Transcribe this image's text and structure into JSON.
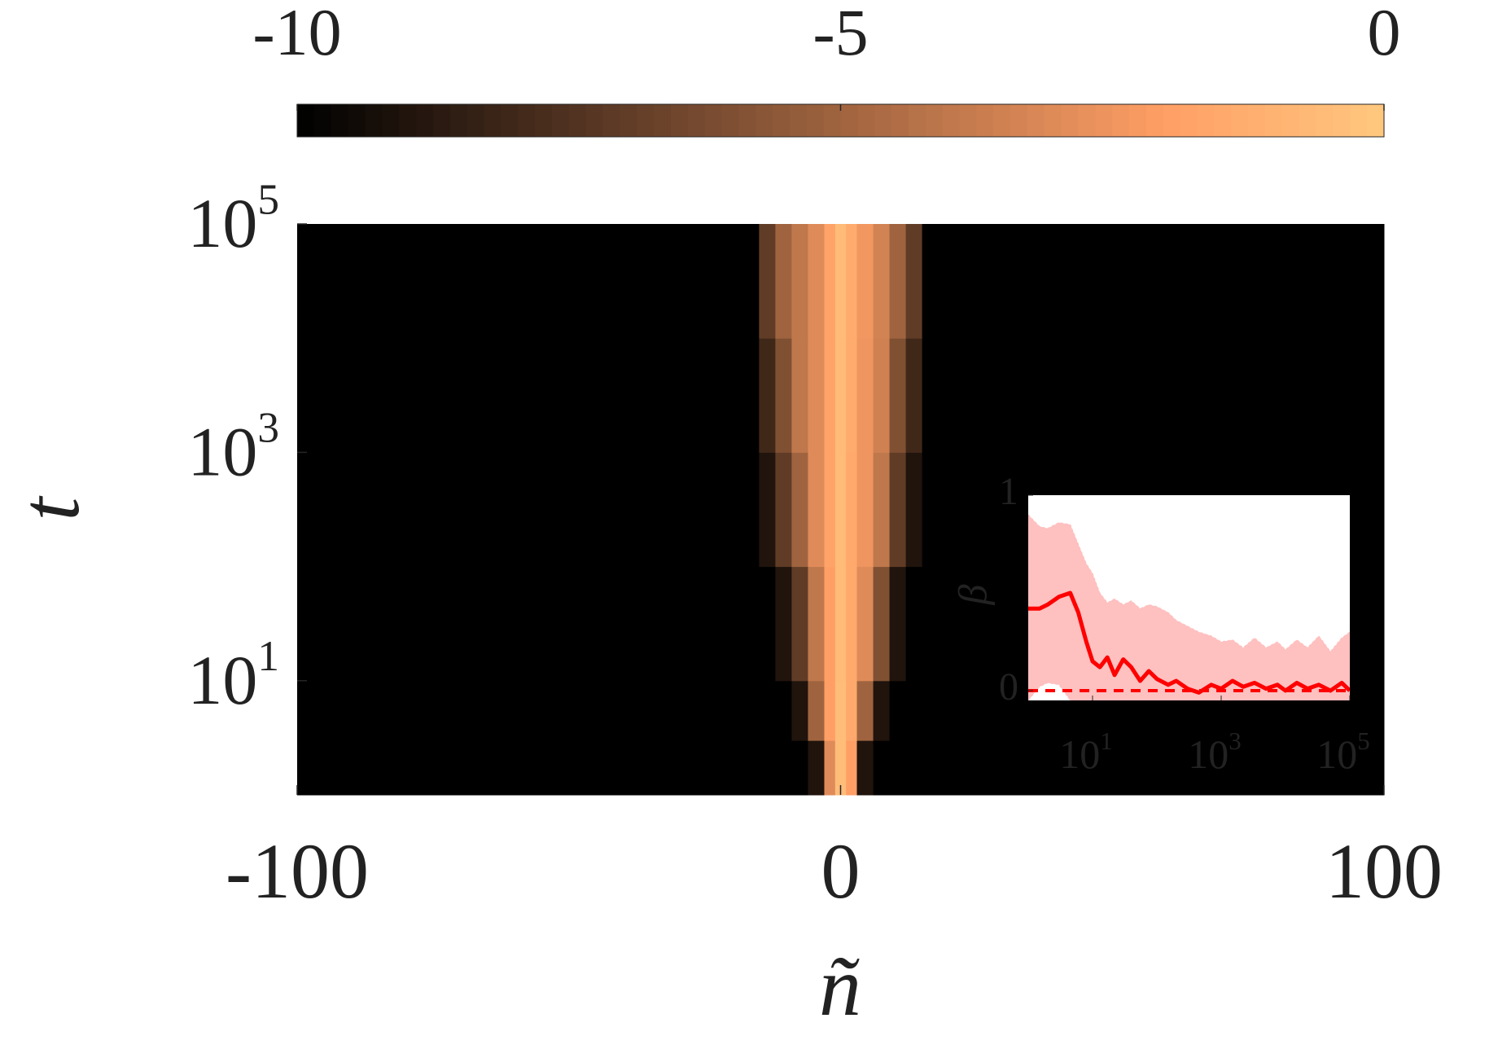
{
  "chart_data": [
    {
      "type": "heatmap",
      "xlabel": "ñ",
      "ylabel": "t",
      "xlim": [
        -100,
        100
      ],
      "xticks": [
        -100,
        0,
        100
      ],
      "ylim": [
        1,
        100000
      ],
      "ylog": true,
      "yticks": [
        {
          "value": 10,
          "label": "10",
          "exponent": "1"
        },
        {
          "value": 1000,
          "label": "10",
          "exponent": "3"
        },
        {
          "value": 100000,
          "label": "10",
          "exponent": "5"
        }
      ],
      "xbins": [
        -100,
        -15,
        -12,
        -9,
        -6,
        -3,
        -1,
        1,
        3,
        6,
        9,
        12,
        15,
        100
      ],
      "ybins": [
        1,
        3,
        10,
        100,
        1000,
        10000,
        100000
      ],
      "z": [
        [
          -10,
          -10,
          -10,
          -10,
          -9,
          -3,
          -0.5,
          -2,
          -9,
          -10,
          -10,
          -10,
          -10
        ],
        [
          -10,
          -10,
          -10,
          -9,
          -5,
          -2,
          -0.5,
          -1.5,
          -5,
          -9,
          -10,
          -10,
          -10
        ],
        [
          -10,
          -10,
          -9,
          -7,
          -4,
          -2,
          -0.6,
          -1.5,
          -3,
          -6,
          -9,
          -10,
          -10
        ],
        [
          -10,
          -9,
          -7,
          -5,
          -3,
          -1.8,
          -0.6,
          -1.5,
          -2.5,
          -4,
          -7,
          -9,
          -10
        ],
        [
          -10,
          -8,
          -6,
          -4,
          -3,
          -1.8,
          -0.6,
          -1.4,
          -2.5,
          -3.5,
          -6,
          -8,
          -10
        ],
        [
          -10,
          -7,
          -5,
          -4,
          -3,
          -1.8,
          -0.6,
          -1.4,
          -2.4,
          -3.4,
          -5,
          -7,
          -10
        ]
      ],
      "colormap": "copper",
      "clim": [
        -10,
        0
      ],
      "colorbar_ticks": [
        -10,
        -5,
        0
      ],
      "colorbar_location": "top"
    },
    {
      "type": "line",
      "ylabel": "β",
      "x": [
        1,
        1.5,
        2,
        3,
        4.5,
        6,
        8,
        10,
        13,
        17,
        22,
        30,
        40,
        55,
        75,
        100,
        150,
        200,
        300,
        450,
        700,
        1000,
        1500,
        2200,
        3300,
        5000,
        7500,
        10000,
        15000,
        22000,
        33000,
        50000,
        75000,
        100000
      ],
      "xlog": true,
      "xlim": [
        1,
        100000
      ],
      "xticks": [
        {
          "value": 10,
          "label": "10",
          "exponent": "1"
        },
        {
          "value": 1000,
          "label": "10",
          "exponent": "3"
        },
        {
          "value": 100000,
          "label": "10",
          "exponent": "5"
        }
      ],
      "ylim": [
        -0.05,
        1
      ],
      "yticks": [
        0,
        1
      ],
      "series": [
        {
          "color": "#ff0000",
          "values": [
            0.42,
            0.42,
            0.44,
            0.48,
            0.5,
            0.4,
            0.25,
            0.15,
            0.12,
            0.17,
            0.08,
            0.16,
            0.12,
            0.05,
            0.1,
            0.06,
            0.03,
            0.05,
            0.01,
            -0.01,
            0.03,
            0.01,
            0.05,
            0.02,
            0.04,
            0.01,
            0.03,
            0.0,
            0.04,
            0.01,
            0.03,
            0.0,
            0.04,
            0.0
          ],
          "band_upper": [
            0.9,
            0.84,
            0.83,
            0.86,
            0.85,
            0.75,
            0.65,
            0.6,
            0.5,
            0.45,
            0.47,
            0.44,
            0.46,
            0.42,
            0.44,
            0.43,
            0.4,
            0.36,
            0.33,
            0.3,
            0.28,
            0.25,
            0.26,
            0.22,
            0.27,
            0.22,
            0.25,
            0.21,
            0.26,
            0.22,
            0.28,
            0.2,
            0.27,
            0.3
          ],
          "band_lower": [
            -0.05,
            0.02,
            0.04,
            0.03,
            -0.05,
            -0.05,
            -0.05,
            -0.05,
            -0.05,
            -0.05,
            -0.05,
            -0.05,
            -0.05,
            -0.05,
            -0.05,
            -0.05,
            -0.05,
            -0.05,
            -0.05,
            -0.05,
            -0.05,
            -0.05,
            -0.05,
            -0.05,
            -0.05,
            -0.05,
            -0.05,
            -0.05,
            -0.05,
            -0.05,
            -0.05,
            -0.05,
            -0.05,
            -0.05
          ],
          "band_color": "#ffc0c0"
        }
      ],
      "reference_line": {
        "value": 0,
        "color": "#ff0000",
        "style": "dashed"
      }
    }
  ]
}
